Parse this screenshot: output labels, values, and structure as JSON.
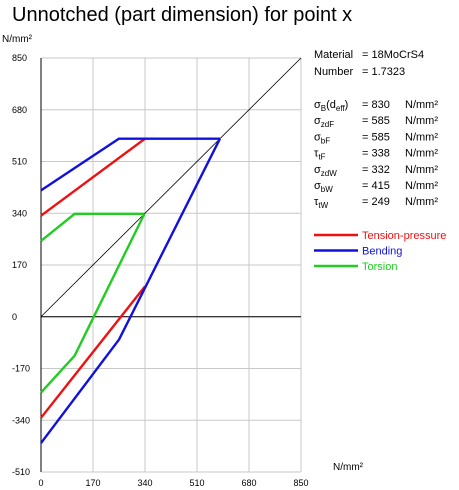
{
  "chart_data": {
    "type": "line",
    "title": "Unnotched (part dimension) for point x",
    "y_unit": "N/mm²",
    "x_unit": "N/mm²",
    "xlim": [
      0,
      850
    ],
    "ylim": [
      -510,
      850
    ],
    "x_ticks": [
      "0",
      "170",
      "340",
      "510",
      "680",
      "850"
    ],
    "x_tick_values": [
      0,
      170,
      340,
      510,
      680,
      850
    ],
    "y_ticks": [
      "850",
      "680",
      "510",
      "340",
      "170",
      "0",
      "-170",
      "-340",
      "-510"
    ],
    "y_tick_values": [
      850,
      680,
      510,
      340,
      170,
      0,
      -170,
      -340,
      -510
    ],
    "grid": true,
    "legend_position": "right",
    "diagonal": [
      [
        0,
        0
      ],
      [
        850,
        850
      ]
    ],
    "series": [
      {
        "name": "Tension-pressure",
        "color": "#ee1111",
        "upper": [
          [
            0,
            332
          ],
          [
            340,
            585
          ]
        ],
        "lower": [
          [
            0,
            -332
          ],
          [
            340,
            100
          ]
        ]
      },
      {
        "name": "Bending",
        "color": "#1111dd",
        "upper": [
          [
            0,
            415
          ],
          [
            255,
            585
          ],
          [
            585,
            585
          ]
        ],
        "lower": [
          [
            0,
            -415
          ],
          [
            255,
            -75
          ],
          [
            585,
            585
          ]
        ]
      },
      {
        "name": "Torsion",
        "color": "#22cc22",
        "upper": [
          [
            0,
            249
          ],
          [
            110,
            338
          ],
          [
            338,
            338
          ]
        ],
        "lower": [
          [
            0,
            -249
          ],
          [
            110,
            -128
          ],
          [
            338,
            338
          ]
        ]
      }
    ]
  },
  "info": {
    "material_label": "Material",
    "material_value": "= 18MoCrS4",
    "number_label": "Number",
    "number_value": "= 1.7323",
    "values": [
      {
        "sym": "σ",
        "sub": "B",
        "extra": "(d",
        "sub2": "eff",
        "extra2": ")",
        "value": "= 830",
        "unit": "N/mm²"
      },
      {
        "sym": "σ",
        "sub": "zdF",
        "value": "= 585",
        "unit": "N/mm²"
      },
      {
        "sym": "σ",
        "sub": "bF",
        "value": "= 585",
        "unit": "N/mm²"
      },
      {
        "sym": "τ",
        "sub": "tF",
        "value": "= 338",
        "unit": "N/mm²"
      },
      {
        "sym": "σ",
        "sub": "zdW",
        "value": "= 332",
        "unit": "N/mm²"
      },
      {
        "sym": "σ",
        "sub": "bW",
        "value": "= 415",
        "unit": "N/mm²"
      },
      {
        "sym": "τ",
        "sub": "tW",
        "value": "= 249",
        "unit": "N/mm²"
      }
    ]
  }
}
